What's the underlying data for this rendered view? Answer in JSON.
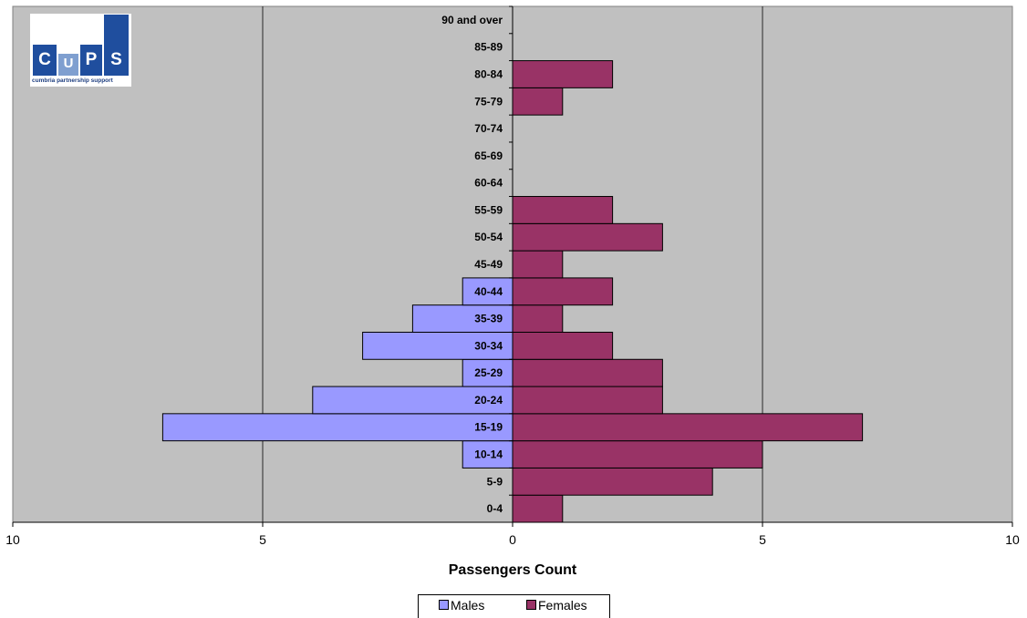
{
  "chart_data": {
    "type": "bar",
    "orientation": "horizontal-population-pyramid",
    "categories": [
      "0-4",
      "5-9",
      "10-14",
      "15-19",
      "20-24",
      "25-29",
      "30-34",
      "35-39",
      "40-44",
      "45-49",
      "50-54",
      "55-59",
      "60-64",
      "65-69",
      "70-74",
      "75-79",
      "80-84",
      "85-89",
      "90 and over"
    ],
    "series": [
      {
        "name": "Males",
        "values": [
          0,
          0,
          1,
          7,
          4,
          1,
          3,
          2,
          1,
          0,
          0,
          0,
          0,
          0,
          0,
          0,
          0,
          0,
          0
        ],
        "color": "#9999ff"
      },
      {
        "name": "Females",
        "values": [
          1,
          4,
          5,
          7,
          3,
          3,
          2,
          1,
          2,
          1,
          3,
          2,
          0,
          0,
          0,
          1,
          2,
          0,
          0
        ],
        "color": "#993366"
      }
    ],
    "x_ticks": [
      "10",
      "5",
      "0",
      "5",
      "10"
    ],
    "xlim": [
      -10,
      10
    ],
    "xlabel": "Passengers Count",
    "ylabel": "",
    "title": "",
    "plot_background": "#c0c0c0",
    "grid": true,
    "legend_position": "bottom"
  },
  "logo": {
    "letters": [
      "C",
      "U",
      "P",
      "S"
    ],
    "tagline": "cumbria partnership support"
  }
}
